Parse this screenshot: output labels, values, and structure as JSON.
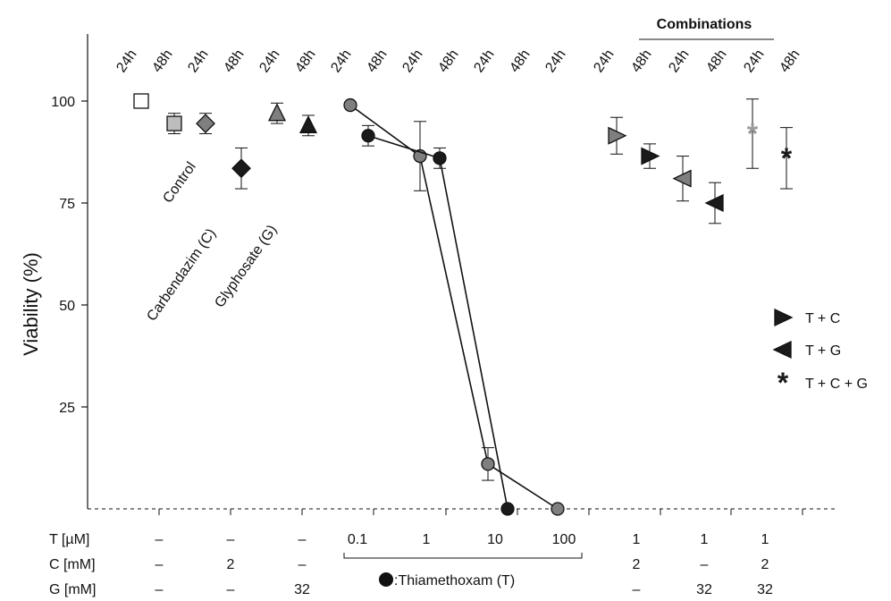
{
  "chart_data": {
    "type": "scatter",
    "ylabel": "Viability (%)",
    "ylim": [
      0,
      100
    ],
    "yticks": [
      25,
      50,
      75,
      100
    ],
    "yticks_labels": [
      "25",
      "50",
      "75",
      "100"
    ],
    "grid": false,
    "legend_placement": "right",
    "legend_title_combinations": "Combinations",
    "legend": [
      {
        "name": "T + C",
        "symbol": "triangle-right"
      },
      {
        "name": "T + G",
        "symbol": "triangle-left"
      },
      {
        "name": "T + C + G",
        "symbol": "star"
      }
    ],
    "time_labels": [
      "24h",
      "48h",
      "24h",
      "48h",
      "24h",
      "48h",
      "24h",
      "48h",
      "24h",
      "48h",
      "24h",
      "48h",
      "24h",
      "24h",
      "48h",
      "24h",
      "48h",
      "24h",
      "48h"
    ],
    "rotated_labels": [
      "Control",
      "Carbendazim (C)",
      "Glyphosate (G)"
    ],
    "thiamethoxam_label": ":Thiamethoxam (T)",
    "row_labels": {
      "T": "T [µM]",
      "C": "C [mM]",
      "G": "G [mM]"
    },
    "row_values": {
      "T": [
        "–",
        "–",
        "–",
        "0.1",
        "1",
        "10",
        "100",
        "1",
        "1",
        "1"
      ],
      "C": [
        "–",
        "2",
        "–",
        "2",
        "–",
        "2"
      ],
      "G": [
        "–",
        "–",
        "32",
        "–",
        "32",
        "32"
      ]
    },
    "colors": {
      "white": "#ffffff",
      "light_gray": "#bdbdbd",
      "gray": "#7f7f7f",
      "dark": "#1a1a1a",
      "star_gray": "#9a9a9a"
    },
    "points": [
      {
        "group": "Control",
        "time": "24h",
        "y": 100,
        "err": 0,
        "marker": "square",
        "color": "white"
      },
      {
        "group": "Control",
        "time": "48h",
        "y": 94.5,
        "err": 2.5,
        "marker": "square",
        "color": "light_gray"
      },
      {
        "group": "Carbendazim (C)",
        "time": "24h",
        "y": 94.5,
        "err": 2.5,
        "marker": "diamond",
        "color": "gray"
      },
      {
        "group": "Carbendazim (C)",
        "time": "48h",
        "y": 83.5,
        "err": 5,
        "marker": "diamond",
        "color": "dark"
      },
      {
        "group": "Glyphosate (G)",
        "time": "24h",
        "y": 97,
        "err": 2.5,
        "marker": "triangle-up",
        "color": "gray"
      },
      {
        "group": "Glyphosate (G)",
        "time": "48h",
        "y": 94,
        "err": 2.5,
        "marker": "triangle-up",
        "color": "dark"
      },
      {
        "group": "T + C",
        "time": "24h",
        "y": 91.5,
        "err": 4.5,
        "marker": "triangle-right",
        "color": "gray"
      },
      {
        "group": "T + C",
        "time": "48h",
        "y": 86.5,
        "err": 3,
        "marker": "triangle-right",
        "color": "dark"
      },
      {
        "group": "T + G",
        "time": "24h",
        "y": 81,
        "err": 5.5,
        "marker": "triangle-left",
        "color": "gray"
      },
      {
        "group": "T + G",
        "time": "48h",
        "y": 75,
        "err": 5,
        "marker": "triangle-left",
        "color": "dark"
      },
      {
        "group": "T + C + G",
        "time": "24h",
        "y": 92,
        "err": 8.5,
        "marker": "star",
        "color": "star_gray"
      },
      {
        "group": "T + C + G",
        "time": "48h",
        "y": 86,
        "err": 7.5,
        "marker": "star",
        "color": "dark"
      }
    ],
    "series": [
      {
        "time": "24h",
        "color": "gray",
        "points": [
          {
            "T": 0.1,
            "y": 99,
            "err": 0
          },
          {
            "T": 1,
            "y": 86.5,
            "err": 8.5
          },
          {
            "T": 10,
            "y": 11,
            "err": 4
          },
          {
            "T": 100,
            "y": 0,
            "err": 0
          }
        ]
      },
      {
        "time": "48h",
        "color": "dark",
        "points": [
          {
            "T": 0.1,
            "y": 91.5,
            "err": 2.5
          },
          {
            "T": 1,
            "y": 86,
            "err": 2.5
          },
          {
            "T": 10,
            "y": 0,
            "err": 0
          }
        ]
      }
    ]
  }
}
